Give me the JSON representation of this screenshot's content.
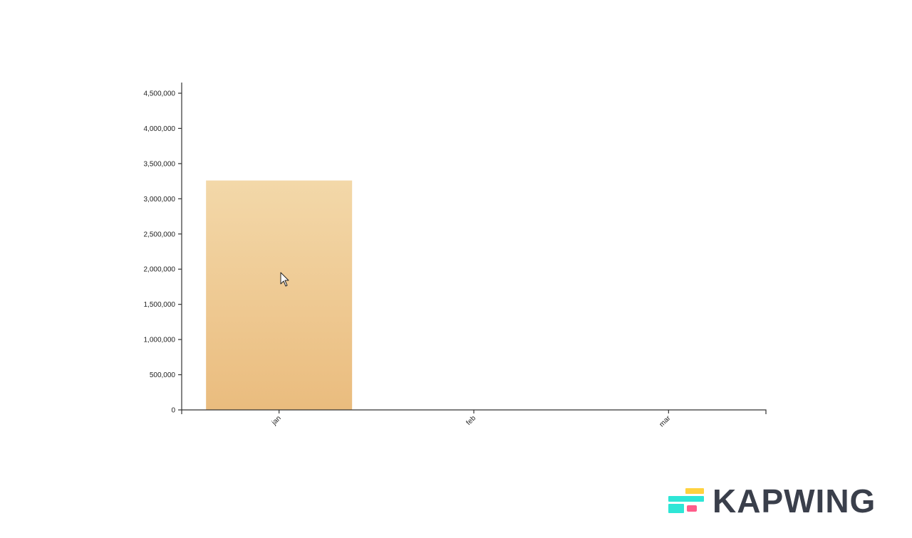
{
  "chart_data": {
    "type": "bar",
    "categories": [
      "jan",
      "feb",
      "mar"
    ],
    "values": [
      3260000,
      0,
      0
    ],
    "yticks": [
      "0",
      "500,000",
      "1,000,000",
      "1,500,000",
      "2,000,000",
      "2,500,000",
      "3,000,000",
      "3,500,000",
      "4,000,000",
      "4,500,000"
    ],
    "ylim": [
      0,
      4650000
    ],
    "title": "",
    "xlabel": "",
    "ylabel": "",
    "grid": false,
    "colors": {
      "bar_top": "#f3d8a9",
      "bar_bottom": "#eabc7e",
      "axis": "#333333"
    }
  },
  "overlay": {
    "cursor_icon": "mouse-pointer-icon"
  },
  "watermark": {
    "logo_icon": "kapwing-logo-icon",
    "text": "KAPWING",
    "colors": {
      "yellow": "#ffd23f",
      "cyan": "#2ee6d6",
      "pink": "#ff5c8a",
      "text": "#3a3f4b"
    }
  }
}
